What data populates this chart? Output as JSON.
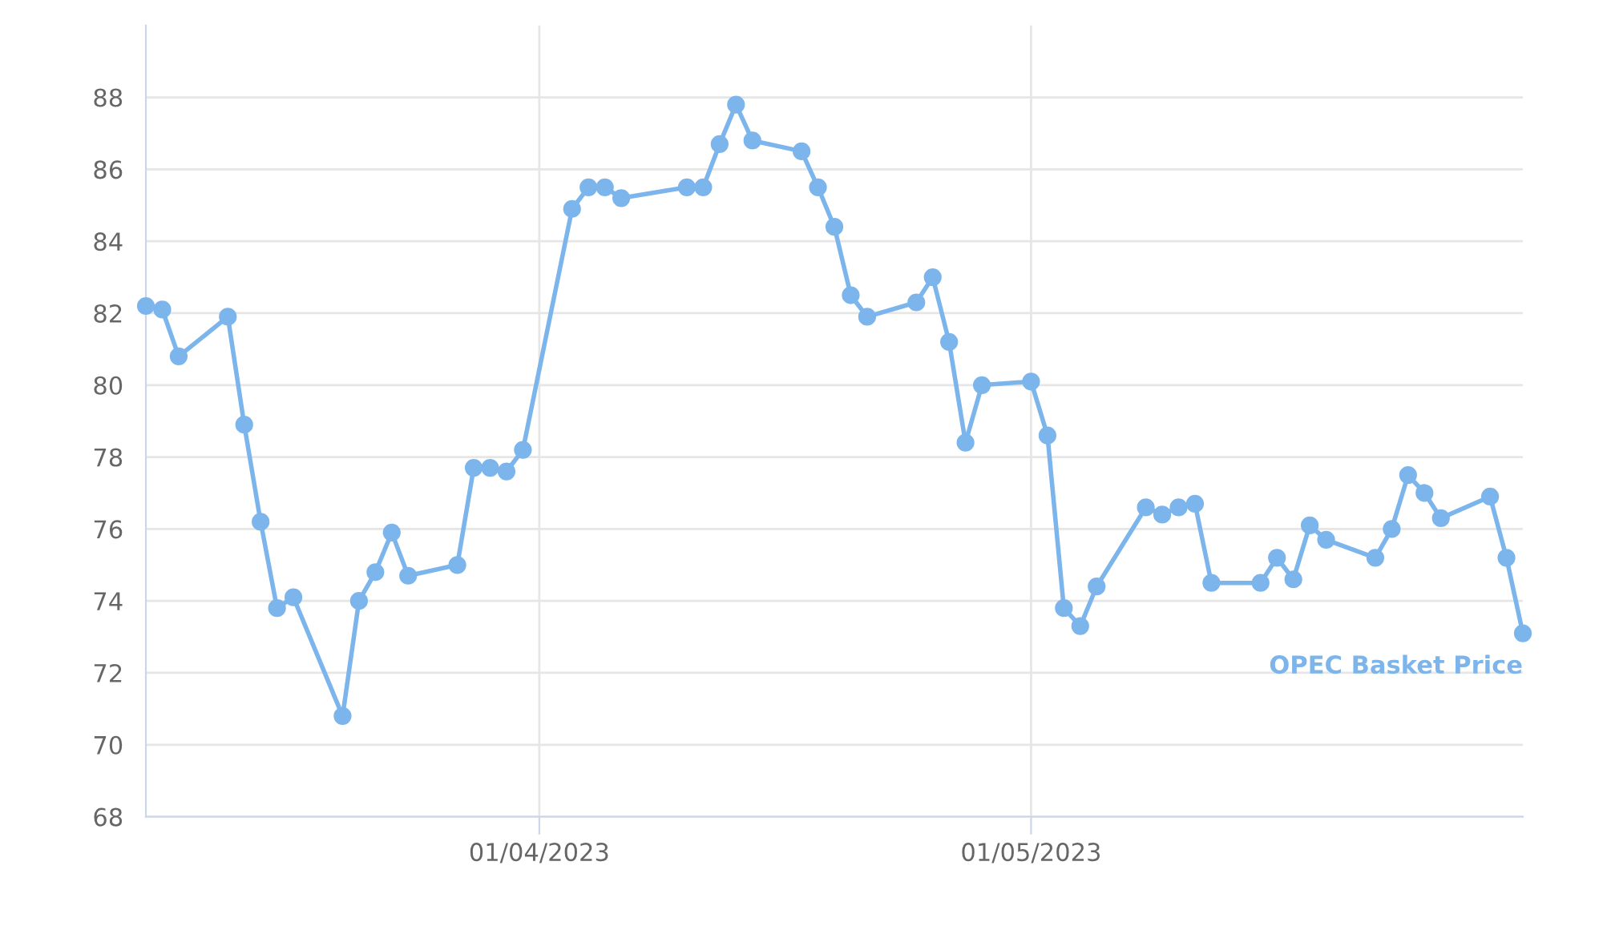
{
  "chart_data": {
    "type": "line",
    "x": [
      "2023-03-08",
      "2023-03-09",
      "2023-03-10",
      "2023-03-13",
      "2023-03-14",
      "2023-03-15",
      "2023-03-16",
      "2023-03-17",
      "2023-03-20",
      "2023-03-21",
      "2023-03-22",
      "2023-03-23",
      "2023-03-24",
      "2023-03-27",
      "2023-03-28",
      "2023-03-29",
      "2023-03-30",
      "2023-03-31",
      "2023-04-03",
      "2023-04-04",
      "2023-04-05",
      "2023-04-06",
      "2023-04-10",
      "2023-04-11",
      "2023-04-12",
      "2023-04-13",
      "2023-04-14",
      "2023-04-17",
      "2023-04-18",
      "2023-04-19",
      "2023-04-20",
      "2023-04-21",
      "2023-04-24",
      "2023-04-25",
      "2023-04-26",
      "2023-04-27",
      "2023-04-28",
      "2023-05-01",
      "2023-05-02",
      "2023-05-03",
      "2023-05-04",
      "2023-05-05",
      "2023-05-08",
      "2023-05-09",
      "2023-05-10",
      "2023-05-11",
      "2023-05-12",
      "2023-05-15",
      "2023-05-16",
      "2023-05-17",
      "2023-05-18",
      "2023-05-19",
      "2023-05-22",
      "2023-05-23",
      "2023-05-24",
      "2023-05-25",
      "2023-05-26",
      "2023-05-29",
      "2023-05-30",
      "2023-05-31"
    ],
    "series": [
      {
        "name": "OPEC Basket Price",
        "color": "#7cb5ec",
        "values": [
          82.2,
          82.1,
          80.8,
          81.9,
          78.9,
          76.2,
          73.8,
          74.1,
          70.8,
          74.0,
          74.8,
          75.9,
          74.7,
          75.0,
          77.7,
          77.7,
          77.6,
          78.2,
          84.9,
          85.5,
          85.5,
          85.2,
          85.5,
          85.5,
          86.7,
          87.8,
          86.8,
          86.5,
          85.5,
          84.4,
          82.5,
          81.9,
          82.3,
          83.0,
          81.2,
          78.4,
          80.0,
          80.1,
          78.6,
          73.8,
          73.3,
          74.4,
          76.6,
          76.4,
          76.6,
          76.7,
          74.5,
          74.5,
          75.2,
          74.6,
          76.1,
          75.7,
          75.2,
          76.0,
          77.5,
          77.0,
          76.3,
          76.9,
          75.2,
          73.1
        ]
      }
    ],
    "xlim": [
      "2023-03-08",
      "2023-05-31"
    ],
    "xticks": [
      {
        "value": "2023-04-01",
        "label": "01/04/2023"
      },
      {
        "value": "2023-05-01",
        "label": "01/05/2023"
      }
    ],
    "ylim": [
      68,
      90
    ],
    "yticks": [
      68,
      70,
      72,
      74,
      76,
      78,
      80,
      82,
      84,
      86,
      88
    ],
    "grid": true,
    "legend": false,
    "marker": "circle",
    "line_style": "solid"
  }
}
